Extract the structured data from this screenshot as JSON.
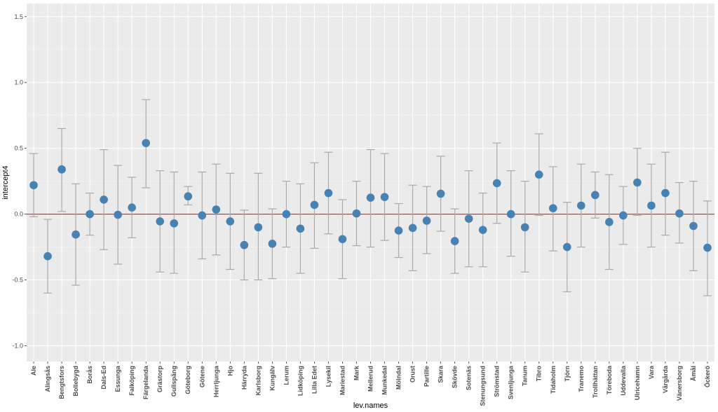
{
  "chart_data": {
    "type": "scatter",
    "xlabel": "lev.names",
    "ylabel": "intercept4",
    "ylim": [
      -1.12,
      1.6
    ],
    "yticks": [
      -1.0,
      -0.5,
      0.0,
      0.5,
      1.0,
      1.5
    ],
    "ytick_labels": [
      "-1.0",
      "-0.5",
      "0.0",
      "0.5",
      "1.0",
      "1.5"
    ],
    "reference_line": {
      "y": 0,
      "color": "#e8352b"
    },
    "point_color": "#4682b4",
    "errorbar_color": "#aaaaaa",
    "panel_background": "#ebebeb",
    "grid": true,
    "categories": [
      "Ale",
      "Alingsås",
      "Bengtsfors",
      "Bollebygd",
      "Borås",
      "Dals-Ed",
      "Essunga",
      "Falköping",
      "Färgelanda",
      "Grästorp",
      "Gullspång",
      "Göteborg",
      "Götene",
      "Herrljunga",
      "Hjo",
      "Härryda",
      "Karlsborg",
      "Kungälv",
      "Lerum",
      "Lidköping",
      "Lilla Edet",
      "Lysekil",
      "Mariestad",
      "Mark",
      "Mellerud",
      "Munkedal",
      "Mölndal",
      "Orust",
      "Partille",
      "Skara",
      "Skövde",
      "Sotenäs",
      "Stenungsund",
      "Strömstad",
      "Svenljunga",
      "Tanum",
      "Tibro",
      "Tidaholm",
      "Tjörn",
      "Tranemo",
      "Trollhättan",
      "Töreboda",
      "Uddevalla",
      "Ulricehamn",
      "Vara",
      "Vårgårda",
      "Vänersborg",
      "Åmål",
      "Öckerö"
    ],
    "values": [
      0.22,
      -0.32,
      0.34,
      -0.155,
      0.0,
      0.11,
      -0.005,
      0.05,
      0.54,
      -0.055,
      -0.07,
      0.135,
      -0.01,
      0.035,
      -0.055,
      -0.235,
      -0.1,
      -0.225,
      0.0,
      -0.11,
      0.07,
      0.16,
      -0.19,
      0.005,
      0.125,
      0.13,
      -0.125,
      -0.105,
      -0.05,
      0.155,
      -0.205,
      -0.035,
      -0.12,
      0.235,
      0.0,
      -0.1,
      0.3,
      0.045,
      -0.25,
      0.065,
      0.145,
      -0.06,
      -0.01,
      0.24,
      0.065,
      0.16,
      0.005,
      -0.09,
      -0.255
    ],
    "lower": [
      -0.02,
      -0.6,
      0.02,
      -0.54,
      -0.16,
      -0.27,
      -0.38,
      -0.18,
      0.2,
      -0.44,
      -0.45,
      0.07,
      -0.34,
      -0.31,
      -0.42,
      -0.5,
      -0.5,
      -0.49,
      -0.25,
      -0.45,
      -0.26,
      -0.15,
      -0.49,
      -0.24,
      -0.25,
      -0.2,
      -0.33,
      -0.43,
      -0.3,
      -0.13,
      -0.45,
      -0.4,
      -0.4,
      -0.07,
      -0.32,
      -0.44,
      -0.01,
      -0.28,
      -0.59,
      -0.25,
      -0.03,
      -0.42,
      -0.23,
      -0.01,
      -0.25,
      -0.16,
      -0.22,
      -0.43,
      -0.62
    ],
    "upper": [
      0.46,
      -0.04,
      0.65,
      0.23,
      0.16,
      0.49,
      0.37,
      0.28,
      0.87,
      0.33,
      0.32,
      0.21,
      0.32,
      0.38,
      0.31,
      0.03,
      0.31,
      0.04,
      0.25,
      0.23,
      0.39,
      0.47,
      0.11,
      0.25,
      0.49,
      0.46,
      0.08,
      0.22,
      0.21,
      0.44,
      0.04,
      0.33,
      0.16,
      0.54,
      0.33,
      0.25,
      0.61,
      0.36,
      0.09,
      0.38,
      0.32,
      0.3,
      0.21,
      0.5,
      0.38,
      0.47,
      0.24,
      0.25,
      0.1
    ]
  }
}
